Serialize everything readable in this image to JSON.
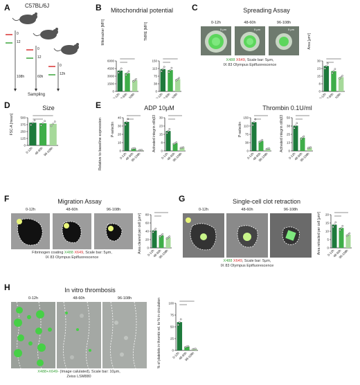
{
  "panelA": {
    "label": "A",
    "strain": "C57BL/6J",
    "times_left": [
      "0",
      "12"
    ],
    "time_108": "108h",
    "times_mid": [
      "0",
      "12",
      "60h"
    ],
    "times_right": [
      "0",
      "12h"
    ],
    "sampling": "Sampling"
  },
  "panelB": {
    "label": "B",
    "title": "Mitochondrial potential",
    "ylabel_left": "Mitotracker [MFI]",
    "ylabel_right": "TMRE [MFI]",
    "left_ticks": [
      "6000",
      "4000",
      "2000",
      "0"
    ],
    "right_ticks": [
      "150",
      "100",
      "50",
      "0"
    ],
    "sig_left": [
      "****",
      "*"
    ],
    "sig_right": [
      "****",
      "***"
    ]
  },
  "panelC": {
    "label": "C",
    "title": "Spreading Assay",
    "times": [
      "0-12h",
      "48-60h",
      "96-108h"
    ],
    "scale": "5 μm",
    "cap_green": "X488",
    "cap_red": "X649",
    "cap_rest": ", Scale bar: 5μm,",
    "cap_line2": "IX 83 Olympus Epifluorescence",
    "ylabel": "Area [μm²]",
    "ticks": [
      "30",
      "20",
      "10",
      "0"
    ],
    "sig": [
      "**",
      "ns"
    ]
  },
  "panelD": {
    "label": "D",
    "title": "Size",
    "ylabel": "FSC-A [mean]",
    "ticks": [
      "500",
      "400",
      "300",
      "200",
      "100",
      "0"
    ],
    "sig": [
      "**",
      "*"
    ]
  },
  "panelE": {
    "label": "E",
    "title_left": "ADP 10μM",
    "title_right": "Thrombin 0.1U/ml",
    "side_label": "Relative to baseline expression",
    "ylabel_psel": "P-selectin",
    "ylabel_int": "Activated integrin αIIbβ3",
    "adp_psel_ticks": [
      "40",
      "30",
      "20",
      "10",
      "0"
    ],
    "adp_int_ticks": [
      "30",
      "20",
      "10",
      "0"
    ],
    "thr_psel_ticks": [
      "150",
      "100",
      "50",
      "0"
    ],
    "thr_int_ticks": [
      "50",
      "40",
      "30",
      "20",
      "10",
      "0"
    ],
    "sig": [
      "****",
      "****",
      "****",
      "****"
    ]
  },
  "panelF": {
    "label": "F",
    "title": "Migration Assay",
    "times": [
      "0-12h",
      "48-60h",
      "96-108h"
    ],
    "cap_pre": "Fibrinogen coating ",
    "cap_green": "X488",
    "cap_red": "X649",
    "cap_rest": ", Scale bar: 5μm,",
    "cap_line2": "IX 83 Olympus Epifluorescence",
    "ylabel": "Area cleared per cell [μm²]",
    "ticks": [
      "80",
      "60",
      "40",
      "20",
      "0"
    ],
    "sig": [
      "**",
      "*"
    ]
  },
  "panelG": {
    "label": "G",
    "title": "Single-cell clot retraction",
    "times": [
      "0-12h",
      "48-60h",
      "96-108h"
    ],
    "cap_green": "X488",
    "cap_red": "X649",
    "cap_rest": ", Scale bar: 5μm,",
    "cap_line2": "IX 83 Olympus Epifluorescence",
    "ylabel": "Area retracted per cell [μm²]",
    "ticks": [
      "20",
      "15",
      "10",
      "5",
      "0"
    ],
    "sig": [
      "*",
      "ns"
    ]
  },
  "panelH": {
    "label": "H",
    "title": "In vitro thrombosis",
    "times": [
      "0-12h",
      "48-60h",
      "96-108h"
    ],
    "cap_green": "X488+X649-",
    "cap_rest": " (Image calulated), Scale bar: 10μm,",
    "cap_line2": "Zeiss LSM880",
    "ylabel": "% of platelets in thrombi rel. to % in circulation",
    "ticks": [
      "100",
      "80",
      "60",
      "40",
      "20",
      "0"
    ],
    "sig": [
      "***",
      "**"
    ]
  },
  "x_categories": [
    "0-12h",
    "48-60h",
    "96-108h"
  ],
  "colors": {
    "dark": "#1e7a3c",
    "mid": "#3fae49",
    "light": "#a6d99a",
    "fluor": "#4cd94c"
  },
  "chart_data": [
    {
      "panel": "B-left",
      "type": "bar",
      "categories": [
        "0-12h",
        "48-60h",
        "96-108h"
      ],
      "values": [
        4100,
        3600,
        2200
      ],
      "ylabel": "Mitotracker [MFI]",
      "ylim": [
        0,
        6000
      ]
    },
    {
      "panel": "B-right",
      "type": "bar",
      "categories": [
        "0-12h",
        "48-60h",
        "96-108h"
      ],
      "values": [
        110,
        105,
        60
      ],
      "ylabel": "TMRE [MFI]",
      "ylim": [
        0,
        150
      ]
    },
    {
      "panel": "C",
      "type": "bar",
      "categories": [
        "0-12h",
        "48-60h",
        "96-108h"
      ],
      "values": [
        25,
        20,
        14
      ],
      "ylabel": "Area [μm²]",
      "ylim": [
        0,
        30
      ]
    },
    {
      "panel": "D",
      "type": "bar",
      "categories": [
        "0-12h",
        "48-60h",
        "96-108h"
      ],
      "values": [
        410,
        400,
        390
      ],
      "ylabel": "FSC-A [mean]",
      "ylim": [
        0,
        500
      ]
    },
    {
      "panel": "E-ADP-Psel",
      "type": "bar",
      "categories": [
        "0-12h",
        "48-60h",
        "96-108h"
      ],
      "values": [
        35,
        3,
        1
      ],
      "ylabel": "P-selectin",
      "ylim": [
        0,
        40
      ]
    },
    {
      "panel": "E-ADP-Int",
      "type": "bar",
      "categories": [
        "0-12h",
        "48-60h",
        "96-108h"
      ],
      "values": [
        18,
        7,
        3
      ],
      "ylabel": "Activated integrin αIIbβ3",
      "ylim": [
        0,
        30
      ]
    },
    {
      "panel": "E-Thr-Psel",
      "type": "bar",
      "categories": [
        "0-12h",
        "48-60h",
        "96-108h"
      ],
      "values": [
        130,
        45,
        10
      ],
      "ylabel": "P-selectin",
      "ylim": [
        0,
        150
      ]
    },
    {
      "panel": "E-Thr-Int",
      "type": "bar",
      "categories": [
        "0-12h",
        "48-60h",
        "96-108h"
      ],
      "values": [
        38,
        20,
        5
      ],
      "ylabel": "Activated integrin αIIbβ3",
      "ylim": [
        0,
        50
      ]
    },
    {
      "panel": "F",
      "type": "bar",
      "categories": [
        "0-12h",
        "48-60h",
        "96-108h"
      ],
      "values": [
        42,
        30,
        25
      ],
      "ylabel": "Area cleared per cell [μm²]",
      "ylim": [
        0,
        80
      ]
    },
    {
      "panel": "G",
      "type": "bar",
      "categories": [
        "0-12h",
        "48-60h",
        "96-108h"
      ],
      "values": [
        14,
        12,
        8
      ],
      "ylabel": "Area retracted per cell [μm²]",
      "ylim": [
        0,
        20
      ]
    },
    {
      "panel": "H",
      "type": "bar",
      "categories": [
        "0-12h",
        "48-60h",
        "96-108h"
      ],
      "values": [
        60,
        8,
        3
      ],
      "ylabel": "% of platelets in thrombi rel. to % in circulation",
      "ylim": [
        0,
        100
      ]
    }
  ]
}
